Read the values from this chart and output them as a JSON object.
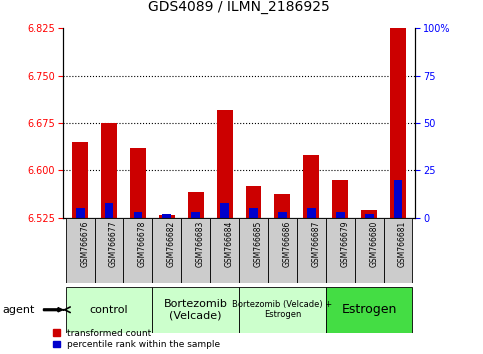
{
  "title": "GDS4089 / ILMN_2186925",
  "samples": [
    "GSM766676",
    "GSM766677",
    "GSM766678",
    "GSM766682",
    "GSM766683",
    "GSM766684",
    "GSM766685",
    "GSM766686",
    "GSM766687",
    "GSM766679",
    "GSM766680",
    "GSM766681"
  ],
  "transformed_count": [
    6.645,
    6.675,
    6.635,
    6.53,
    6.565,
    6.695,
    6.575,
    6.562,
    6.625,
    6.585,
    6.538,
    6.832
  ],
  "percentile_rank": [
    5,
    8,
    3,
    2,
    3,
    8,
    5,
    3,
    5,
    3,
    2,
    20
  ],
  "base": 6.525,
  "ylim_left": [
    6.525,
    6.825
  ],
  "ylim_right": [
    0,
    100
  ],
  "yticks_left": [
    6.525,
    6.6,
    6.675,
    6.75,
    6.825
  ],
  "yticks_right": [
    0,
    25,
    50,
    75,
    100
  ],
  "groups": [
    {
      "label": "control",
      "start": 0,
      "end": 3,
      "color": "#ccffcc",
      "fontsize": 8
    },
    {
      "label": "Bortezomib\n(Velcade)",
      "start": 3,
      "end": 6,
      "color": "#ccffcc",
      "fontsize": 8
    },
    {
      "label": "Bortezomib (Velcade) +\nEstrogen",
      "start": 6,
      "end": 9,
      "color": "#ccffcc",
      "fontsize": 6
    },
    {
      "label": "Estrogen",
      "start": 9,
      "end": 12,
      "color": "#44dd44",
      "fontsize": 9
    }
  ],
  "bar_color_red": "#cc0000",
  "bar_color_blue": "#0000cc",
  "bg_color": "#ffffff",
  "legend_red": "transformed count",
  "legend_blue": "percentile rank within the sample",
  "title_fontsize": 10,
  "tick_fontsize": 7,
  "label_fontsize": 8,
  "sample_bg": "#cccccc",
  "plot_bg": "#ffffff"
}
